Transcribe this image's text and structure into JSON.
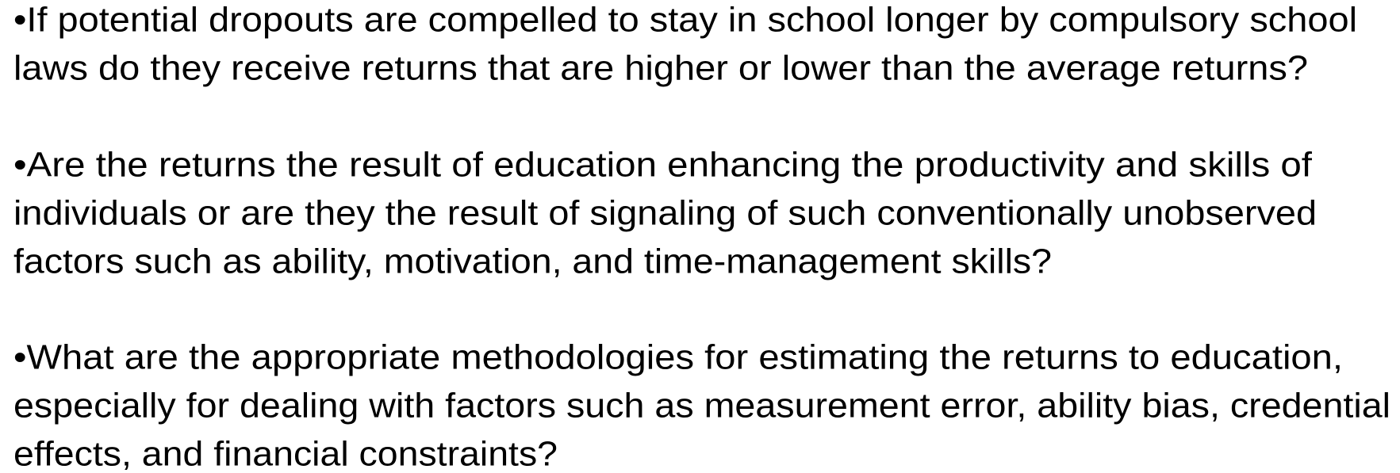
{
  "bullets": [
    [
      "•If potential dropouts are compelled to stay in school longer by compulsory school",
      "laws do they receive returns that are higher or lower than the average returns?"
    ],
    [
      "•Are the returns the result of education enhancing the productivity and skills of",
      "individuals or are they the result of signaling of such conventionally unobserved",
      "factors such as ability, motivation, and time-management skills?"
    ],
    [
      "•What are the appropriate methodologies for estimating the returns to education,",
      "especially for dealing with factors such as measurement error, ability bias, credential",
      "effects, and financial constraints?"
    ]
  ]
}
